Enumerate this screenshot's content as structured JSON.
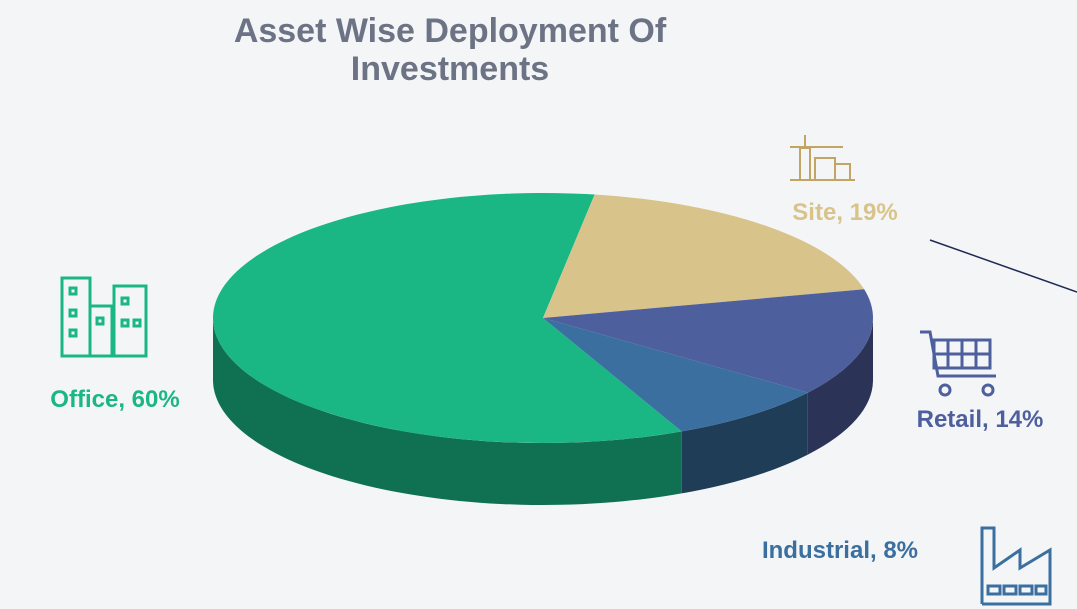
{
  "chart_data": {
    "type": "pie",
    "title": "Asset Wise Deployment Of Investments",
    "values": [
      60,
      19,
      14,
      8
    ],
    "value_labels": [
      "Office, 60%",
      "Site, 19%",
      "Retail, 14%",
      "Industrial, 8%"
    ],
    "colors": [
      "#1ab784",
      "#d8c48a",
      "#4e5f9e",
      "#3a6fa0"
    ]
  }
}
